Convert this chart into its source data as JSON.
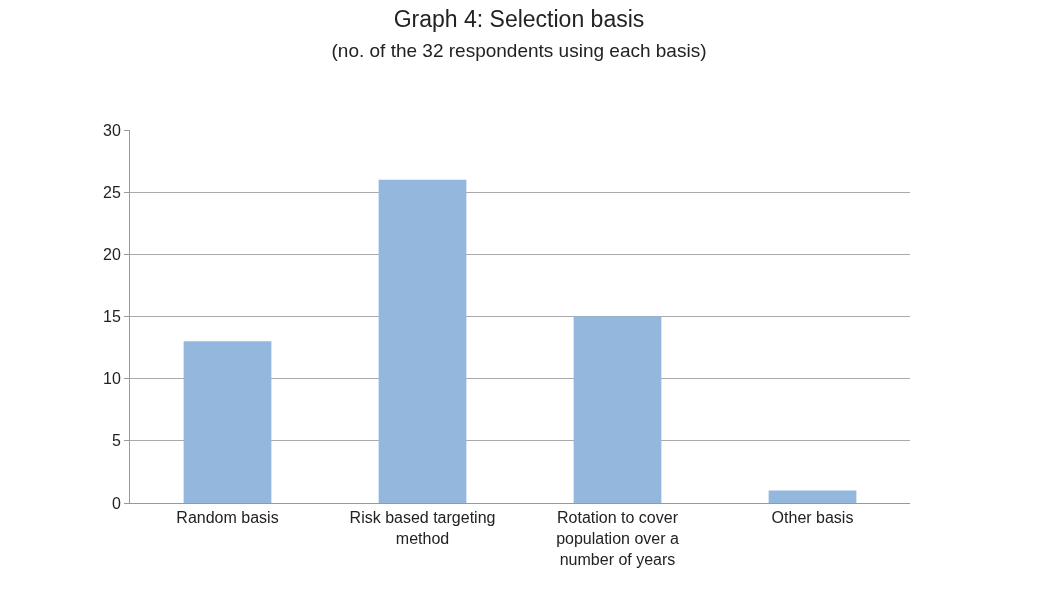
{
  "chart_data": {
    "type": "bar",
    "title": "Graph 4: Selection basis",
    "subtitle": "(no. of the 32 respondents using each basis)",
    "categories": [
      "Random basis",
      "Risk based targeting method",
      "Rotation to cover population over a number of years",
      "Other basis"
    ],
    "values": [
      13,
      26,
      15,
      1
    ],
    "color": "#94b8dd",
    "ylim": [
      0,
      30
    ],
    "yticks": [
      0,
      5,
      10,
      15,
      20,
      25,
      30
    ],
    "grid": "y",
    "legend": false
  }
}
